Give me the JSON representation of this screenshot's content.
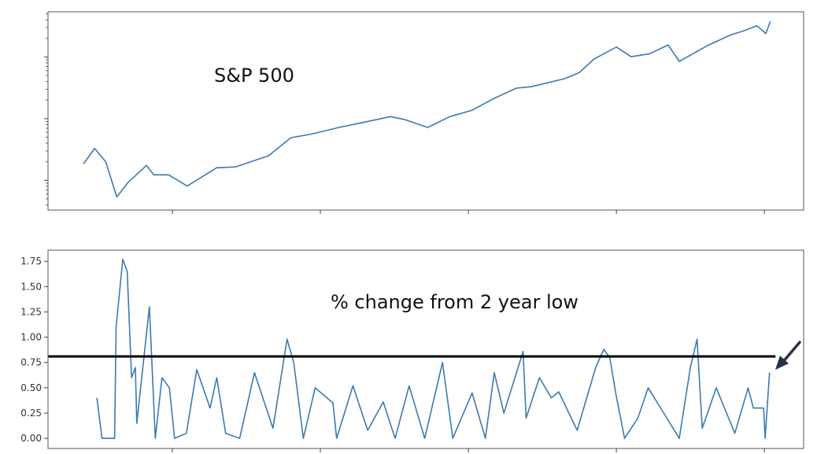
{
  "chart_data": [
    {
      "type": "line",
      "annotation": "S&P 500",
      "yscale": "log",
      "xlim": [
        1923.2,
        2025.3
      ],
      "ylim": [
        3.3,
        5400
      ],
      "yticks": [
        10,
        100,
        1000
      ],
      "xticks": [
        1940,
        1960,
        1980,
        2000,
        2020
      ],
      "show_tick_labels": false,
      "grid": false,
      "color": "#3a7ab5",
      "x": [
        1928,
        1929.5,
        1931,
        1932.5,
        1934,
        1936.5,
        1937.5,
        1939.5,
        1942,
        1946,
        1948.5,
        1953,
        1956,
        1959,
        1962.5,
        1966,
        1969.5,
        1971.5,
        1974.5,
        1977.5,
        1980.5,
        1983.5,
        1986.5,
        1988.5,
        1993,
        1995,
        1997,
        2000,
        2002,
        2004.5,
        2007,
        2008.5,
        2010,
        2012.5,
        2015.5,
        2017,
        2019,
        2020.2,
        2020.8
      ],
      "y": [
        18.5,
        33,
        20,
        5.4,
        9.2,
        17.5,
        12.3,
        12.3,
        8.1,
        16,
        16.5,
        25,
        49,
        57,
        72,
        88,
        108,
        96,
        72,
        108,
        137,
        214,
        313,
        330,
        445,
        560,
        930,
        1450,
        1010,
        1130,
        1570,
        850,
        1070,
        1570,
        2300,
        2600,
        3200,
        2400,
        3800
      ]
    },
    {
      "type": "line",
      "annotation": "% change from 2 year low",
      "xlim": [
        1923.2,
        2025.3
      ],
      "ylim": [
        -0.1,
        1.86
      ],
      "yticks": [
        0.0,
        0.25,
        0.5,
        0.75,
        1.0,
        1.25,
        1.5,
        1.75
      ],
      "ytick_labels": [
        "0.00",
        "0.25",
        "0.50",
        "0.75",
        "1.00",
        "1.25",
        "1.50",
        "1.75"
      ],
      "xticks": [
        1940,
        1960,
        1980,
        2000,
        2020
      ],
      "grid": false,
      "color": "#3a7ab5",
      "threshold": {
        "value": 0.81,
        "x_end": 2021.5,
        "color": "#000000"
      },
      "arrow_color": "#2b3245",
      "x": [
        1929.8,
        1930.5,
        1932.2,
        1932.4,
        1933.3,
        1933.9,
        1934.5,
        1935.0,
        1935.2,
        1936.9,
        1937.7,
        1938.6,
        1939.6,
        1940.3,
        1941.9,
        1943.3,
        1945.1,
        1946.0,
        1947.2,
        1949.1,
        1951.1,
        1953.6,
        1955.5,
        1956.4,
        1957.7,
        1959.3,
        1961.7,
        1962.2,
        1964.4,
        1966.4,
        1968.5,
        1970.1,
        1972.0,
        1974.1,
        1976.5,
        1977.9,
        1980.5,
        1982.3,
        1983.5,
        1984.8,
        1987.4,
        1987.8,
        1989.6,
        1991.2,
        1992.2,
        1994.7,
        1997.2,
        1998.3,
        1999.1,
        1999.9,
        2001.1,
        2002.9,
        2004.3,
        2006.4,
        2008.5,
        2010.0,
        2010.9,
        2011.6,
        2013.5,
        2016.0,
        2017.8,
        2018.5,
        2019.9,
        2020.1,
        2020.7
      ],
      "y": [
        0.4,
        0.0,
        0.0,
        1.1,
        1.77,
        1.65,
        0.6,
        0.7,
        0.15,
        1.3,
        0.0,
        0.6,
        0.5,
        0.0,
        0.05,
        0.68,
        0.3,
        0.6,
        0.05,
        0.0,
        0.65,
        0.1,
        0.98,
        0.75,
        0.0,
        0.5,
        0.35,
        0.0,
        0.52,
        0.08,
        0.36,
        0.0,
        0.52,
        0.0,
        0.75,
        0.0,
        0.45,
        0.0,
        0.65,
        0.25,
        0.86,
        0.2,
        0.6,
        0.4,
        0.46,
        0.08,
        0.7,
        0.88,
        0.8,
        0.45,
        0.0,
        0.2,
        0.5,
        0.25,
        0.0,
        0.7,
        0.98,
        0.1,
        0.5,
        0.05,
        0.5,
        0.3,
        0.3,
        0.0,
        0.65
      ]
    }
  ]
}
